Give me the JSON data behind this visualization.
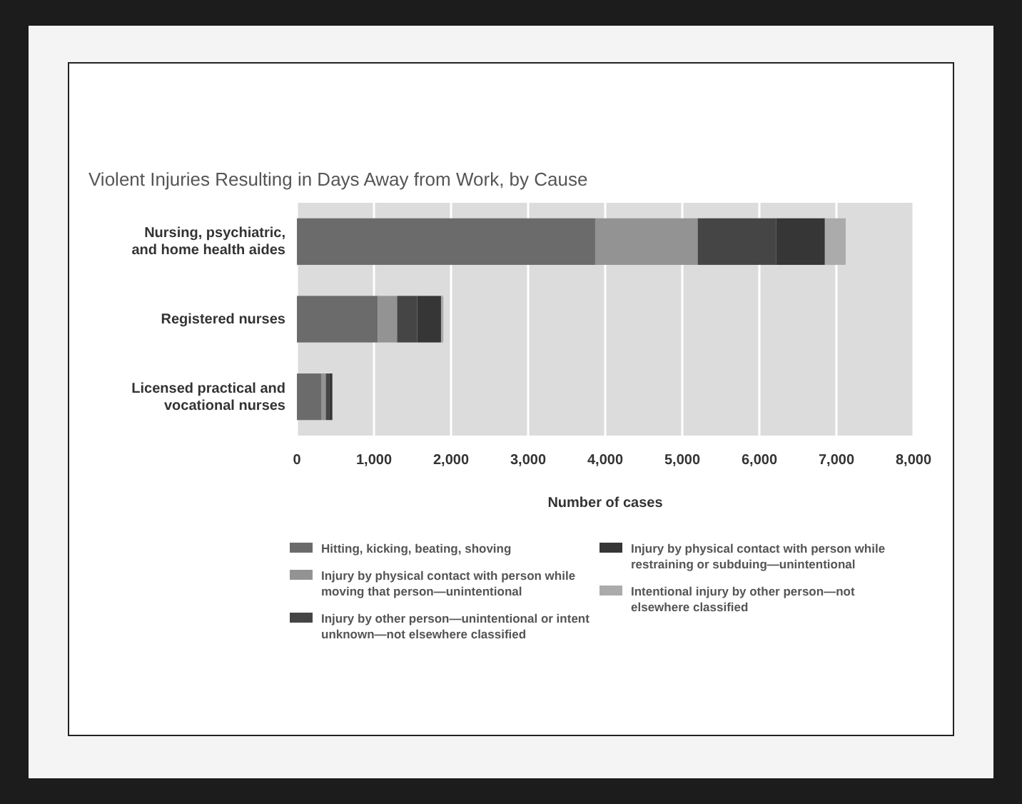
{
  "chart_data": {
    "type": "bar",
    "orientation": "horizontal",
    "stacked": true,
    "title": "Violent Injuries Resulting in Days Away from Work, by Cause",
    "xlabel": "Number of cases",
    "categories": [
      "Nursing, psychiatric, and home health aides",
      "Registered nurses",
      "Licensed practical and vocational nurses"
    ],
    "series": [
      {
        "name": "Hitting, kicking, beating, shoving",
        "color": "#6b6b6b",
        "values": [
          3870,
          1050,
          315
        ]
      },
      {
        "name": "Injury by physical contact with person while moving that person—unintentional",
        "color": "#939393",
        "values": [
          1330,
          250,
          60
        ]
      },
      {
        "name": "Injury by other person—unintentional or intent unknown—not elsewhere classified",
        "color": "#454545",
        "values": [
          1020,
          260,
          50
        ]
      },
      {
        "name": "Injury by physical contact with person while restraining or subduing—unintentional",
        "color": "#363636",
        "values": [
          630,
          310,
          35
        ]
      },
      {
        "name": "Intentional injury by other person—not elsewhere classified",
        "color": "#ababab",
        "values": [
          270,
          30,
          0
        ]
      }
    ],
    "xlim": [
      0,
      8000
    ],
    "xticks": [
      {
        "value": 0,
        "label": "0"
      },
      {
        "value": 1000,
        "label": "1,000"
      },
      {
        "value": 2000,
        "label": "2,000"
      },
      {
        "value": 3000,
        "label": "3,000"
      },
      {
        "value": 4000,
        "label": "4,000"
      },
      {
        "value": 5000,
        "label": "5,000"
      },
      {
        "value": 6000,
        "label": "6,000"
      },
      {
        "value": 7000,
        "label": "7,000"
      },
      {
        "value": 8000,
        "label": "8,000"
      }
    ],
    "grid": "x",
    "legend": "bottom"
  }
}
